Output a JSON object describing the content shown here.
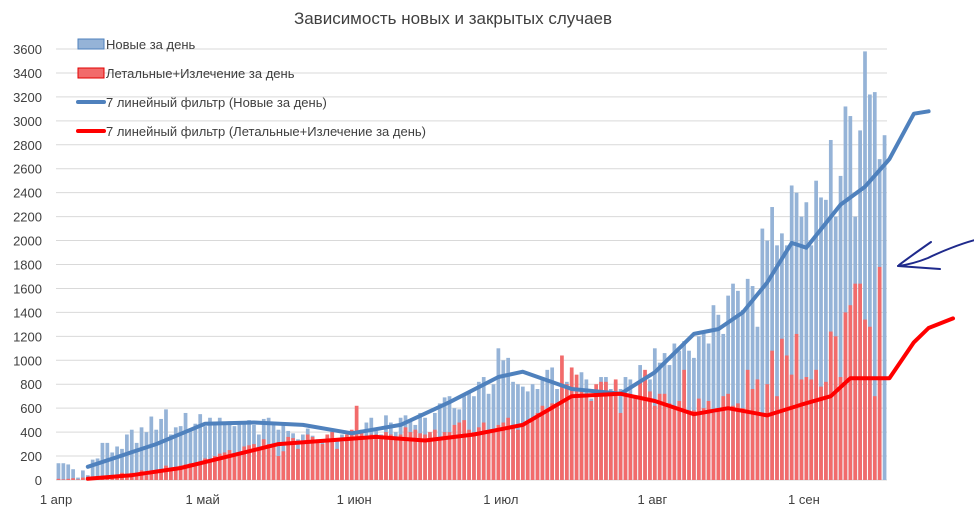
{
  "chart_data": {
    "type": "bar",
    "title": "Зависимость новых и закрытых случаев",
    "xlabel": "",
    "ylabel": "",
    "ylim": [
      0,
      3600
    ],
    "yticks": [
      0,
      200,
      400,
      600,
      800,
      1000,
      1200,
      1400,
      1600,
      1800,
      2000,
      2200,
      2400,
      2600,
      2800,
      3000,
      3200,
      3400,
      3600
    ],
    "grid": true,
    "legend_position": "top-left",
    "x_start": "1 апр",
    "xticks": [
      {
        "label": "1 апр",
        "day": 0
      },
      {
        "label": "1 май",
        "day": 30
      },
      {
        "label": "1 июн",
        "day": 61
      },
      {
        "label": "1 июл",
        "day": 91
      },
      {
        "label": "1 авг",
        "day": 122
      },
      {
        "label": "1 сен",
        "day": 153
      }
    ],
    "series": [
      {
        "name": "Новые за день",
        "kind": "bar",
        "color": "#95b3d7",
        "values": [
          140,
          140,
          130,
          90,
          20,
          80,
          40,
          170,
          180,
          310,
          310,
          230,
          280,
          260,
          380,
          420,
          310,
          440,
          400,
          530,
          420,
          510,
          590,
          380,
          440,
          450,
          560,
          410,
          470,
          550,
          450,
          520,
          470,
          520,
          460,
          490,
          450,
          470,
          480,
          500,
          460,
          380,
          510,
          520,
          480,
          420,
          470,
          410,
          390,
          340,
          380,
          430,
          370,
          340,
          330,
          360,
          420,
          350,
          380,
          370,
          370,
          400,
          420,
          480,
          520,
          410,
          380,
          540,
          480,
          400,
          520,
          540,
          490,
          460,
          560,
          520,
          380,
          560,
          640,
          690,
          700,
          600,
          590,
          700,
          740,
          700,
          820,
          860,
          720,
          800,
          1100,
          1000,
          1020,
          820,
          800,
          780,
          740,
          800,
          760,
          860,
          920,
          940,
          760,
          760,
          820,
          900,
          680,
          900,
          840,
          680,
          740,
          860,
          860,
          760,
          820,
          760,
          860,
          840,
          700,
          960,
          880,
          840,
          1100,
          980,
          1060,
          960,
          1140,
          1080,
          1160,
          1080,
          1020,
          1200,
          1240,
          1140,
          1460,
          1380,
          1220,
          1540,
          1640,
          1580,
          1420,
          1680,
          1620,
          1280,
          2100,
          2000,
          2280,
          1960,
          2060,
          1960,
          2460,
          2400,
          2200,
          2320,
          1960,
          2500,
          2360,
          2340,
          2840,
          2200,
          2540,
          3120,
          3040,
          2200,
          2920,
          3580,
          3220,
          3240,
          2680,
          2880
        ]
      },
      {
        "name": "Летальные+Излечение за день",
        "kind": "bar",
        "color": "#f26b6b",
        "values": [
          10,
          5,
          10,
          15,
          5,
          20,
          10,
          10,
          15,
          20,
          30,
          40,
          40,
          60,
          40,
          60,
          50,
          80,
          40,
          60,
          80,
          80,
          120,
          90,
          100,
          120,
          130,
          140,
          120,
          150,
          180,
          170,
          200,
          220,
          230,
          250,
          200,
          220,
          280,
          290,
          300,
          260,
          340,
          300,
          300,
          200,
          240,
          360,
          350,
          260,
          320,
          380,
          360,
          320,
          300,
          380,
          400,
          260,
          320,
          380,
          420,
          620,
          400,
          350,
          380,
          380,
          340,
          400,
          380,
          360,
          380,
          440,
          400,
          420,
          390,
          380,
          400,
          420,
          360,
          400,
          400,
          460,
          480,
          500,
          420,
          400,
          440,
          480,
          400,
          420,
          460,
          480,
          520,
          440,
          420,
          460,
          470,
          500,
          560,
          620,
          580,
          640,
          640,
          1040,
          800,
          940,
          880,
          760,
          700,
          660,
          800,
          820,
          820,
          740,
          840,
          560,
          720,
          700,
          700,
          820,
          920,
          740,
          620,
          720,
          720,
          640,
          600,
          660,
          920,
          580,
          580,
          680,
          600,
          660,
          560,
          600,
          700,
          720,
          620,
          640,
          600,
          920,
          760,
          840,
          560,
          800,
          1080,
          700,
          1180,
          1040,
          880,
          1220,
          840,
          860,
          840,
          920,
          780,
          820,
          1240,
          1200,
          860,
          1400,
          1460,
          1640,
          1640,
          1340,
          1280,
          700,
          1780
        ]
      },
      {
        "name": "7 линейный фильтр (Новые за день)",
        "kind": "line",
        "color": "#4f81bd",
        "start_day": 6,
        "points": [
          [
            6,
            110
          ],
          [
            20,
            300
          ],
          [
            30,
            470
          ],
          [
            40,
            480
          ],
          [
            50,
            460
          ],
          [
            60,
            390
          ],
          [
            70,
            460
          ],
          [
            80,
            650
          ],
          [
            90,
            860
          ],
          [
            95,
            905
          ],
          [
            105,
            760
          ],
          [
            115,
            720
          ],
          [
            122,
            900
          ],
          [
            130,
            1220
          ],
          [
            135,
            1260
          ],
          [
            140,
            1400
          ],
          [
            145,
            1650
          ],
          [
            150,
            1980
          ],
          [
            153,
            1940
          ],
          [
            160,
            2300
          ],
          [
            165,
            2450
          ],
          [
            170,
            2680
          ],
          [
            175,
            3060
          ],
          [
            178,
            3080
          ]
        ]
      },
      {
        "name": "7 линейный фильтр (Летальные+Излечение за день)",
        "kind": "line",
        "color": "#ff0000",
        "start_day": 6,
        "points": [
          [
            6,
            10
          ],
          [
            15,
            40
          ],
          [
            25,
            100
          ],
          [
            35,
            200
          ],
          [
            45,
            300
          ],
          [
            55,
            330
          ],
          [
            65,
            360
          ],
          [
            75,
            330
          ],
          [
            85,
            380
          ],
          [
            95,
            460
          ],
          [
            105,
            700
          ],
          [
            115,
            720
          ],
          [
            122,
            660
          ],
          [
            130,
            550
          ],
          [
            137,
            600
          ],
          [
            145,
            540
          ],
          [
            152,
            630
          ],
          [
            158,
            700
          ],
          [
            162,
            850
          ],
          [
            170,
            850
          ],
          [
            175,
            1150
          ],
          [
            178,
            1270
          ],
          [
            183,
            1350
          ]
        ]
      }
    ]
  }
}
